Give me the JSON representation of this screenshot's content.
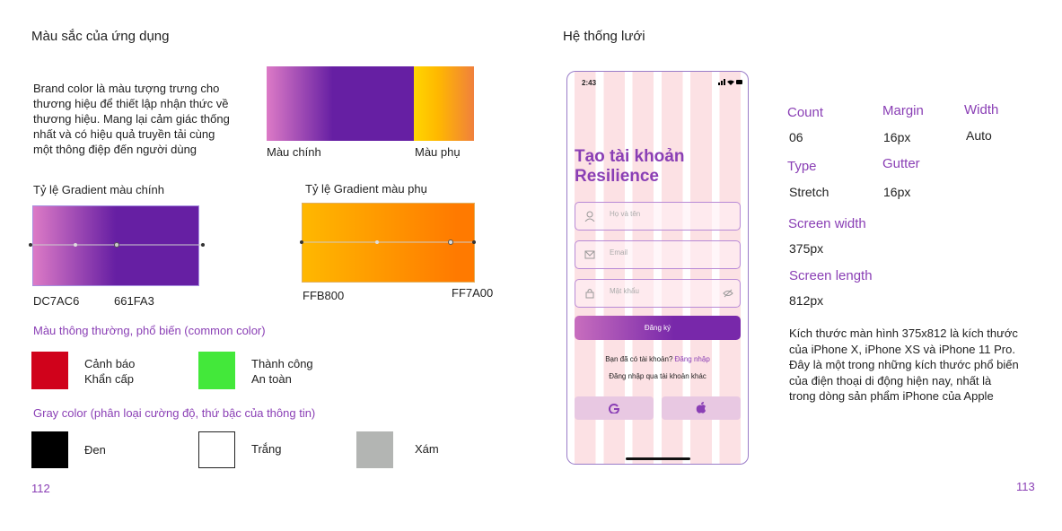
{
  "left_page": {
    "title": "Màu sắc của ứng dụng",
    "intro": [
      "Brand color là màu tượng trưng cho",
      "thương hiệu để thiết lập nhận thức về",
      "thương hiệu. Mang lại cảm giác thống",
      "nhất và có hiệu quả truyền tải cùng",
      "một thông điệp đến người dùng"
    ],
    "primary_label": "Màu chính",
    "secondary_label": "Màu phụ",
    "primary_gradient": {
      "title": "Tỷ lệ Gradient màu chính",
      "stops": [
        "DC7AC6",
        "661FA3"
      ]
    },
    "secondary_gradient": {
      "title": "Tỷ lệ Gradient màu phụ",
      "stops": [
        "FFB800",
        "FF7A00"
      ]
    },
    "common_color": {
      "title": "Màu thông thường, phổ biến (common color)",
      "items": [
        [
          "Cảnh báo",
          "Khẩn cấp"
        ],
        [
          "Thành công",
          "An toàn"
        ]
      ]
    },
    "gray_color": {
      "title": "Gray color (phân loại cường độ, thứ bậc của thông tin)",
      "items": [
        "Đen",
        "Trắng",
        "Xám"
      ]
    },
    "page_number": "112"
  },
  "right_page": {
    "title": "Hệ thống lưới",
    "phone": {
      "time": "2:43",
      "heading": [
        "Tạo tài khoản",
        "Resilience"
      ],
      "fields": [
        "Họ và tên",
        "Email",
        "Mật khẩu"
      ],
      "button": "Đăng ký",
      "login_prompt": "Bạn đã có tài khoản?",
      "login_link": "Đăng nhập",
      "alt_login": "Đăng nhập qua tài khoản khác"
    },
    "specs": [
      {
        "label": "Count",
        "value": "06"
      },
      {
        "label": "Margin",
        "value": "16px"
      },
      {
        "label": "Width",
        "value": "Auto"
      },
      {
        "label": "Type",
        "value": "Stretch"
      },
      {
        "label": "Gutter",
        "value": "16px"
      },
      {
        "label": "Screen width",
        "value": "375px"
      },
      {
        "label": "Screen length",
        "value": "812px"
      }
    ],
    "description": [
      "Kích thước màn hình 375x812 là kích thước",
      "của iPhone X, iPhone XS và iPhone 11 Pro.",
      "Đây là một trong những kích thước phổ biến",
      "của điện thoại di động hiện nay, nhất là",
      "trong dòng sản phẩm iPhone của Apple"
    ],
    "page_number": "113"
  }
}
